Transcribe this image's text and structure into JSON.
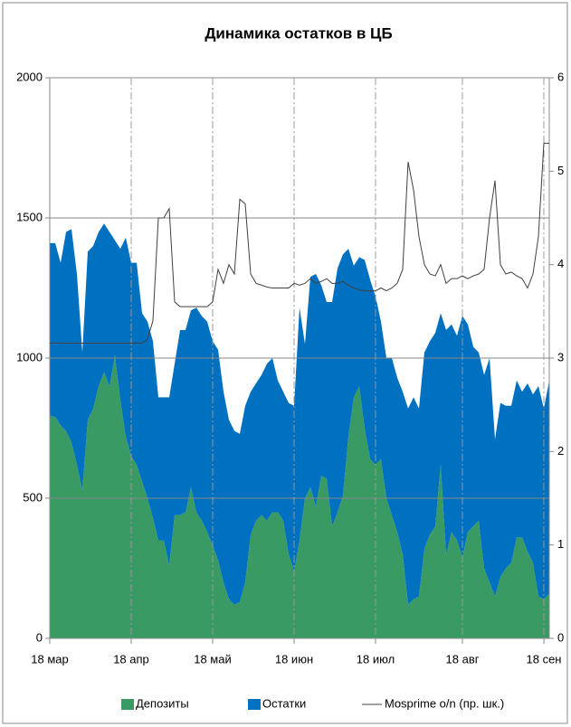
{
  "chart_data": {
    "type": "area",
    "stacked": true,
    "title": "Динамика остатков в ЦБ",
    "categories": [
      "18 мар",
      null,
      null,
      null,
      null,
      null,
      null,
      null,
      null,
      null,
      null,
      null,
      null,
      null,
      null,
      "18 апр",
      null,
      null,
      null,
      null,
      null,
      null,
      null,
      null,
      null,
      null,
      null,
      null,
      null,
      null,
      "18 май",
      null,
      null,
      null,
      null,
      null,
      null,
      null,
      null,
      null,
      null,
      null,
      null,
      null,
      null,
      "18 июн",
      null,
      null,
      null,
      null,
      null,
      null,
      null,
      null,
      null,
      null,
      null,
      null,
      null,
      null,
      "18 июл",
      null,
      null,
      null,
      null,
      null,
      null,
      null,
      null,
      null,
      null,
      null,
      null,
      null,
      null,
      null,
      "18 авг",
      null,
      null,
      null,
      null,
      null,
      null,
      null,
      null,
      null,
      null,
      null,
      null,
      null,
      null,
      "18 сен",
      null
    ],
    "series": [
      {
        "name": "Депозиты",
        "color": "#3a9a63",
        "values": [
          795,
          790,
          760,
          740,
          700,
          620,
          530,
          780,
          820,
          900,
          950,
          900,
          1010,
          850,
          720,
          650,
          620,
          560,
          500,
          430,
          350,
          350,
          260,
          440,
          440,
          450,
          540,
          450,
          420,
          380,
          330,
          280,
          200,
          140,
          120,
          130,
          200,
          370,
          420,
          440,
          420,
          450,
          450,
          420,
          300,
          240,
          350,
          500,
          540,
          470,
          580,
          570,
          400,
          450,
          510,
          720,
          860,
          900,
          750,
          640,
          620,
          640,
          500,
          440,
          380,
          300,
          120,
          140,
          150,
          320,
          370,
          400,
          620,
          300,
          380,
          350,
          290,
          380,
          400,
          420,
          250,
          200,
          150,
          220,
          250,
          270,
          360,
          360,
          310,
          270,
          150,
          140,
          160
        ]
      },
      {
        "name": "Остатки",
        "color": "#0070c0",
        "values": [
          615,
          620,
          580,
          710,
          760,
          680,
          490,
          600,
          580,
          550,
          530,
          550,
          410,
          540,
          710,
          690,
          720,
          600,
          630,
          630,
          510,
          510,
          600,
          540,
          660,
          650,
          630,
          730,
          730,
          750,
          730,
          750,
          680,
          640,
          620,
          600,
          630,
          510,
          490,
          500,
          560,
          550,
          470,
          460,
          540,
          590,
          830,
          550,
          750,
          830,
          680,
          630,
          800,
          870,
          860,
          670,
          470,
          460,
          600,
          640,
          600,
          490,
          500,
          560,
          550,
          580,
          700,
          720,
          670,
          700,
          690,
          690,
          540,
          800,
          740,
          730,
          860,
          740,
          640,
          600,
          690,
          800,
          560,
          620,
          580,
          560,
          560,
          520,
          600,
          600,
          750,
          680,
          760
        ]
      },
      {
        "name": "Mosprime o/n (пр. шк.)",
        "color": "#404040",
        "axis": "y2",
        "type": "line",
        "values": [
          3.16,
          3.16,
          3.16,
          3.16,
          3.16,
          3.16,
          3.16,
          3.16,
          3.16,
          3.16,
          3.16,
          3.16,
          3.16,
          3.16,
          3.16,
          3.16,
          3.16,
          3.16,
          3.2,
          3.4,
          4.5,
          4.5,
          4.6,
          3.6,
          3.55,
          3.55,
          3.55,
          3.55,
          3.55,
          3.55,
          3.6,
          3.95,
          3.8,
          4.0,
          3.9,
          4.7,
          4.65,
          3.9,
          3.8,
          3.78,
          3.76,
          3.75,
          3.75,
          3.75,
          3.75,
          3.8,
          3.78,
          3.8,
          3.85,
          3.8,
          3.82,
          3.85,
          3.8,
          3.8,
          3.82,
          3.78,
          3.75,
          3.73,
          3.72,
          3.72,
          3.72,
          3.75,
          3.72,
          3.75,
          3.8,
          3.95,
          5.1,
          4.8,
          4.3,
          4.0,
          3.9,
          3.88,
          4.0,
          3.8,
          3.85,
          3.85,
          3.88,
          3.85,
          3.88,
          3.9,
          3.95,
          4.5,
          4.9,
          4.0,
          3.9,
          3.92,
          3.88,
          3.85,
          3.75,
          3.9,
          4.3,
          5.3,
          5.3
        ]
      }
    ],
    "ylim": [
      0,
      2000
    ],
    "yticks": [
      0,
      500,
      1000,
      1500,
      2000
    ],
    "y2lim": [
      0,
      6
    ],
    "y2ticks": [
      0,
      1,
      2,
      3,
      4,
      5,
      6
    ],
    "grid": true,
    "legend": "bottom"
  }
}
